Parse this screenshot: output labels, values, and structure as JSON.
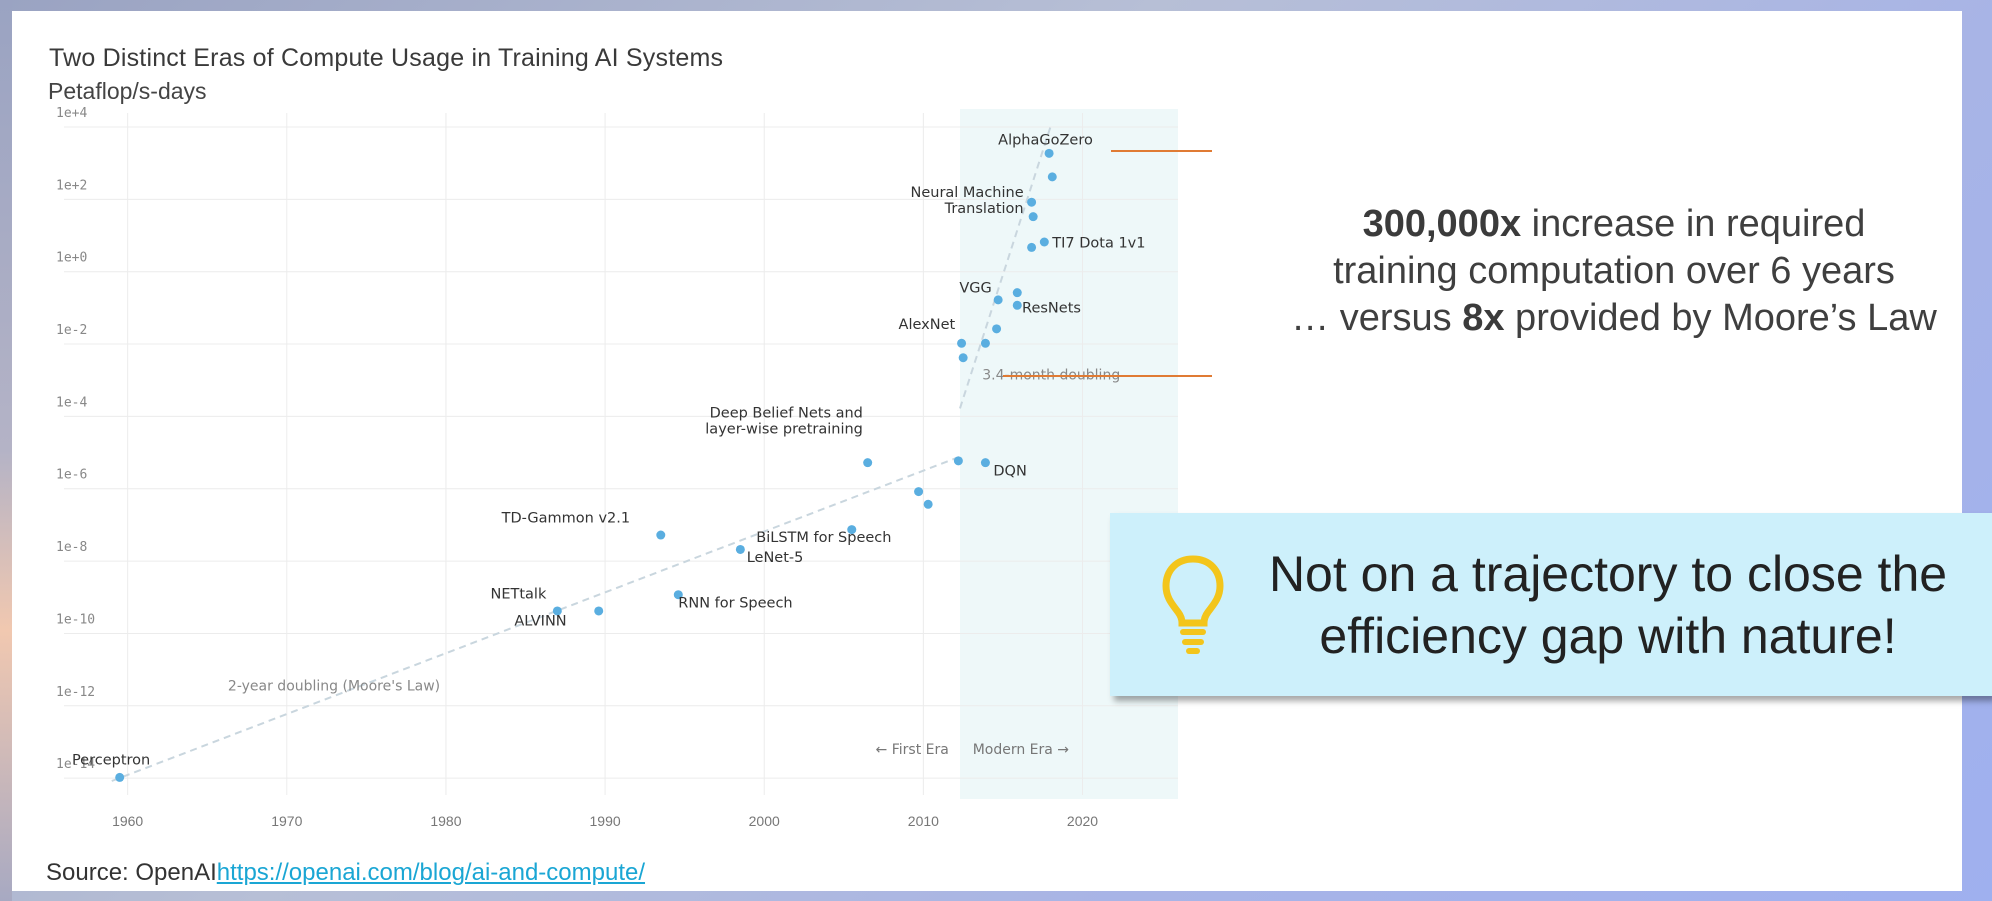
{
  "slide": {
    "source_label": "Source: OpenAI",
    "source_link": "https://openai.com/blog/ai-and-compute/",
    "callout": {
      "value1": "300,000x",
      "line1_rest": " increase in required",
      "line2": "training computation over 6 years",
      "line3_pre": "… versus ",
      "value2": "8x",
      "line3_rest": " provided by Moore’s Law"
    },
    "note": {
      "icon": "lightbulb-icon",
      "text": "Not on a trajectory to close the efficiency gap with nature!",
      "background": "#cdf0fb",
      "icon_color": "#f3c51b"
    },
    "accent_color": "#e07b34",
    "point_color": "#5aaee0"
  },
  "chart_data": {
    "type": "scatter",
    "title": "Two Distinct Eras of Compute Usage in Training AI Systems",
    "ylabel": "Petaflop/s-days",
    "xlabel": "",
    "y_scale": "log10",
    "xlim": [
      1956,
      2026
    ],
    "ylim_exponent": [
      -14.3,
      4
    ],
    "x_ticks": [
      1960,
      1970,
      1980,
      1990,
      2000,
      2010,
      2020
    ],
    "y_ticks": [
      {
        "exp": 4,
        "label": "1e+4"
      },
      {
        "exp": 2,
        "label": "1e+2"
      },
      {
        "exp": 0,
        "label": "1e+0"
      },
      {
        "exp": -2,
        "label": "1e-2"
      },
      {
        "exp": -4,
        "label": "1e-4"
      },
      {
        "exp": -6,
        "label": "1e-6"
      },
      {
        "exp": -8,
        "label": "1e-8"
      },
      {
        "exp": -10,
        "label": "1e-10"
      },
      {
        "exp": -12,
        "label": "1e-12"
      },
      {
        "exp": -14,
        "label": "1e-14"
      }
    ],
    "grid": true,
    "modern_era_start": 2012.3,
    "era_labels": {
      "first": "← First Era",
      "modern": "Modern Era →"
    },
    "trends": [
      {
        "label": "2-year doubling (Moore's Law)",
        "from": [
          1959,
          -14.3
        ],
        "to": [
          2012.5,
          -5.3
        ]
      },
      {
        "label": "3.4-month doubling",
        "from": [
          2012.3,
          -4.0
        ],
        "to": [
          2018,
          3.8
        ]
      }
    ],
    "points": [
      {
        "name": "Perceptron",
        "year": 1959.5,
        "log10_pfsdays": -14.2
      },
      {
        "name": "NETtalk",
        "year": 1987,
        "log10_pfsdays": -9.6
      },
      {
        "name": "ALVINN",
        "year": 1989.6,
        "log10_pfsdays": -9.6
      },
      {
        "name": "TD-Gammon v2.1",
        "year": 1993.5,
        "log10_pfsdays": -7.5
      },
      {
        "name": "RNN for Speech",
        "year": 1994.6,
        "log10_pfsdays": -9.15
      },
      {
        "name": "LeNet-5",
        "year": 1998.5,
        "log10_pfsdays": -7.9
      },
      {
        "name": "BiLSTM for Speech",
        "year": 2005.5,
        "log10_pfsdays": -7.35
      },
      {
        "name": "Deep Belief Nets and layer-wise pretraining",
        "year": 2006.5,
        "log10_pfsdays": -5.5
      },
      {
        "name": "",
        "year": 2009.7,
        "log10_pfsdays": -6.3
      },
      {
        "name": "",
        "year": 2010.3,
        "log10_pfsdays": -6.65
      },
      {
        "name": "",
        "year": 2012.2,
        "log10_pfsdays": -5.45
      },
      {
        "name": "DQN",
        "year": 2013.9,
        "log10_pfsdays": -5.5
      },
      {
        "name": "AlexNet",
        "year": 2012.4,
        "log10_pfsdays": -2.2
      },
      {
        "name": "",
        "year": 2012.5,
        "log10_pfsdays": -2.6
      },
      {
        "name": "",
        "year": 2013.9,
        "log10_pfsdays": -2.2
      },
      {
        "name": "",
        "year": 2014.6,
        "log10_pfsdays": -1.8
      },
      {
        "name": "VGG",
        "year": 2014.7,
        "log10_pfsdays": -1.0
      },
      {
        "name": "",
        "year": 2015.9,
        "log10_pfsdays": -0.8
      },
      {
        "name": "ResNets",
        "year": 2015.9,
        "log10_pfsdays": -1.15
      },
      {
        "name": "",
        "year": 2016.8,
        "log10_pfsdays": 0.45
      },
      {
        "name": "TI7 Dota 1v1",
        "year": 2017.6,
        "log10_pfsdays": 0.6
      },
      {
        "name": "Neural Machine Translation",
        "year": 2016.8,
        "log10_pfsdays": 1.7
      },
      {
        "name": "",
        "year": 2016.9,
        "log10_pfsdays": 1.3
      },
      {
        "name": "",
        "year": 2018.1,
        "log10_pfsdays": 2.4
      },
      {
        "name": "AlphaGoZero",
        "year": 2017.9,
        "log10_pfsdays": 3.05
      }
    ],
    "labels": [
      {
        "text": "Perceptron",
        "anchor": "start",
        "year": 1956.5,
        "exp": -13.85
      },
      {
        "text": "NETtalk",
        "anchor": "start",
        "year": 1982.8,
        "exp": -9.25
      },
      {
        "text": "ALVINN",
        "anchor": "start",
        "year": 1984.3,
        "exp": -10.0
      },
      {
        "text": "TD-Gammon v2.1",
        "anchor": "start",
        "year": 1983.5,
        "exp": -7.15
      },
      {
        "text": "RNN for Speech",
        "anchor": "start",
        "year": 1994.6,
        "exp": -9.5
      },
      {
        "text": "LeNet-5",
        "anchor": "start",
        "year": 1998.9,
        "exp": -8.25
      },
      {
        "text": "BiLSTM for Speech",
        "anchor": "start",
        "year": 1999.5,
        "exp": -7.7
      },
      {
        "text": "Deep Belief Nets and",
        "anchor": "end",
        "year": 2006.2,
        "exp": -4.25
      },
      {
        "text": "layer-wise pretraining",
        "anchor": "end",
        "year": 2006.2,
        "exp": -4.7
      },
      {
        "text": "DQN",
        "anchor": "start",
        "year": 2014.4,
        "exp": -5.85
      },
      {
        "text": "AlexNet",
        "anchor": "end",
        "year": 2012.0,
        "exp": -1.8
      },
      {
        "text": "VGG",
        "anchor": "end",
        "year": 2014.3,
        "exp": -0.8
      },
      {
        "text": "ResNets",
        "anchor": "start",
        "year": 2016.2,
        "exp": -1.35
      },
      {
        "text": "TI7 Dota 1v1",
        "anchor": "start",
        "year": 2018.1,
        "exp": 0.45
      },
      {
        "text": "Neural Machine",
        "anchor": "end",
        "year": 2016.3,
        "exp": 1.85
      },
      {
        "text": "Translation",
        "anchor": "end",
        "year": 2016.3,
        "exp": 1.4
      },
      {
        "text": "AlphaGoZero",
        "anchor": "start",
        "year": 2014.7,
        "exp": 3.3
      }
    ]
  }
}
